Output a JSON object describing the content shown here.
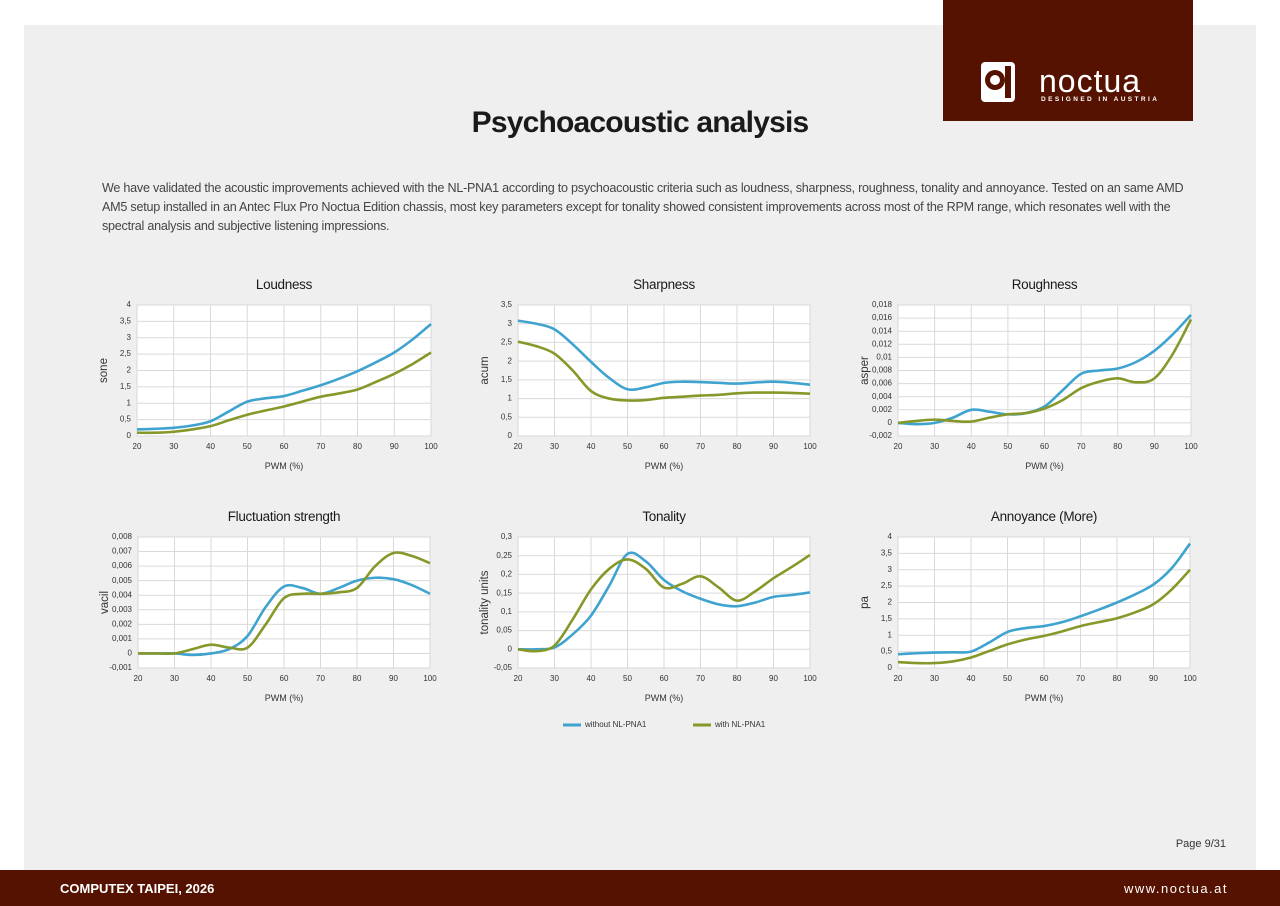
{
  "logo": {
    "name": "noctua",
    "tagline": "DESIGNED IN AUSTRIA"
  },
  "title": "Psychoacoustic analysis",
  "intro": "We have validated the acoustic improvements achieved with the NL-PNA1 according to psychoacoustic criteria such as loudness, sharpness, roughness, tonality and annoyance. Tested on an same AMD AM5 setup installed in an Antec Flux Pro Noctua Edition chassis, most key parameters except for tonality showed consistent improvements across most of the RPM range, which resonates well with the spectral analysis and subjective listening impressions.",
  "legend": [
    {
      "name": "without NL-PNA1",
      "color": "#3fa3cf"
    },
    {
      "name": "with NL-PNA1",
      "color": "#86982a"
    }
  ],
  "chart_data": [
    {
      "type": "line",
      "title": "Loudness",
      "xlabel": "PWM (%)",
      "ylabel": "sone",
      "grid": true,
      "x": [
        20,
        25,
        30,
        35,
        40,
        45,
        50,
        55,
        60,
        65,
        70,
        75,
        80,
        85,
        90,
        95,
        100
      ],
      "xlim": [
        20,
        100
      ],
      "xticks": [
        20,
        30,
        40,
        50,
        60,
        70,
        80,
        90,
        100
      ],
      "ylim": [
        0,
        4
      ],
      "yticks": [
        0,
        {
          "value": 0.5,
          "label": "0,5"
        },
        1,
        {
          "value": 1.5,
          "label": "1,5"
        },
        2,
        {
          "value": 2.5,
          "label": "2,5"
        },
        3,
        {
          "value": 3.5,
          "label": "3,5"
        },
        4
      ],
      "series": [
        {
          "values": [
            0.2,
            0.22,
            0.25,
            0.32,
            0.45,
            0.75,
            1.05,
            1.15,
            1.22,
            1.38,
            1.55,
            1.75,
            1.98,
            2.25,
            2.55,
            2.95,
            3.42
          ]
        },
        {
          "values": [
            0.1,
            0.1,
            0.13,
            0.2,
            0.3,
            0.48,
            0.65,
            0.78,
            0.9,
            1.05,
            1.2,
            1.3,
            1.42,
            1.65,
            1.9,
            2.2,
            2.55
          ]
        }
      ]
    },
    {
      "type": "line",
      "title": "Sharpness",
      "xlabel": "PWM (%)",
      "ylabel": "acum",
      "grid": true,
      "x": [
        20,
        25,
        30,
        35,
        40,
        45,
        50,
        55,
        60,
        65,
        70,
        75,
        80,
        85,
        90,
        95,
        100
      ],
      "xlim": [
        20,
        100
      ],
      "xticks": [
        20,
        30,
        40,
        50,
        60,
        70,
        80,
        90,
        100
      ],
      "ylim": [
        0,
        3.5
      ],
      "yticks": [
        0,
        {
          "value": 0.5,
          "label": "0,5"
        },
        1,
        {
          "value": 1.5,
          "label": "1,5"
        },
        2,
        {
          "value": 2.5,
          "label": "2,5"
        },
        3,
        {
          "value": 3.5,
          "label": "3,5"
        }
      ],
      "series": [
        {
          "values": [
            3.08,
            3.0,
            2.85,
            2.45,
            1.98,
            1.55,
            1.25,
            1.3,
            1.42,
            1.45,
            1.44,
            1.42,
            1.4,
            1.43,
            1.45,
            1.42,
            1.37
          ]
        },
        {
          "values": [
            2.52,
            2.4,
            2.2,
            1.75,
            1.2,
            1.0,
            0.95,
            0.96,
            1.02,
            1.05,
            1.08,
            1.1,
            1.14,
            1.16,
            1.16,
            1.15,
            1.13
          ]
        }
      ]
    },
    {
      "type": "line",
      "title": "Roughness",
      "xlabel": "PWM (%)",
      "ylabel": "asper",
      "grid": true,
      "x": [
        20,
        25,
        30,
        35,
        40,
        45,
        50,
        55,
        60,
        65,
        70,
        75,
        80,
        85,
        90,
        95,
        100
      ],
      "xlim": [
        20,
        100
      ],
      "xticks": [
        20,
        30,
        40,
        50,
        60,
        70,
        80,
        90,
        100
      ],
      "ylim": [
        -0.002,
        0.018
      ],
      "yticks": [
        {
          "value": -0.002,
          "label": "-0,002"
        },
        0,
        {
          "value": 0.002,
          "label": "0,002"
        },
        {
          "value": 0.004,
          "label": "0,004"
        },
        {
          "value": 0.006,
          "label": "0,006"
        },
        {
          "value": 0.008,
          "label": "0,008"
        },
        {
          "value": 0.01,
          "label": "0,01"
        },
        {
          "value": 0.012,
          "label": "0,012"
        },
        {
          "value": 0.014,
          "label": "0,014"
        },
        {
          "value": 0.016,
          "label": "0,016"
        },
        {
          "value": 0.018,
          "label": "0,018"
        }
      ],
      "series": [
        {
          "values": [
            0,
            -0.0002,
            0,
            0.0008,
            0.002,
            0.0017,
            0.0013,
            0.0015,
            0.0025,
            0.005,
            0.0075,
            0.008,
            0.0083,
            0.0093,
            0.011,
            0.0135,
            0.0165
          ]
        },
        {
          "values": [
            0,
            0.0003,
            0.0005,
            0.0003,
            0.0002,
            0.0008,
            0.0013,
            0.0015,
            0.0022,
            0.0035,
            0.0053,
            0.0063,
            0.0068,
            0.0062,
            0.0068,
            0.0105,
            0.0158
          ]
        }
      ]
    },
    {
      "type": "line",
      "title": "Fluctuation strength",
      "xlabel": "PWM (%)",
      "ylabel": "vacil",
      "grid": true,
      "x": [
        20,
        25,
        30,
        35,
        40,
        45,
        50,
        55,
        60,
        65,
        70,
        75,
        80,
        85,
        90,
        95,
        100
      ],
      "xlim": [
        20,
        100
      ],
      "xticks": [
        20,
        30,
        40,
        50,
        60,
        70,
        80,
        90,
        100
      ],
      "ylim": [
        -0.001,
        0.008
      ],
      "yticks": [
        {
          "value": -0.001,
          "label": "-0,001"
        },
        0,
        {
          "value": 0.001,
          "label": "0,001"
        },
        {
          "value": 0.002,
          "label": "0,002"
        },
        {
          "value": 0.003,
          "label": "0,003"
        },
        {
          "value": 0.004,
          "label": "0,004"
        },
        {
          "value": 0.005,
          "label": "0,005"
        },
        {
          "value": 0.006,
          "label": "0,006"
        },
        {
          "value": 0.007,
          "label": "0,007"
        },
        {
          "value": 0.008,
          "label": "0,008"
        }
      ],
      "series": [
        {
          "values": [
            0,
            0,
            0,
            -0.0001,
            0,
            0.0003,
            0.0012,
            0.0032,
            0.0046,
            0.0045,
            0.0041,
            0.0045,
            0.005,
            0.0052,
            0.0051,
            0.0047,
            0.0041
          ]
        },
        {
          "values": [
            0,
            0,
            0,
            0.0003,
            0.0006,
            0.0004,
            0.0004,
            0.002,
            0.0038,
            0.0041,
            0.0041,
            0.0042,
            0.0045,
            0.006,
            0.0069,
            0.0067,
            0.0062
          ]
        }
      ]
    },
    {
      "type": "line",
      "title": "Tonality",
      "xlabel": "PWM (%)",
      "ylabel": "tonality units",
      "grid": true,
      "x": [
        20,
        25,
        30,
        35,
        40,
        45,
        50,
        55,
        60,
        65,
        70,
        75,
        80,
        85,
        90,
        95,
        100
      ],
      "xlim": [
        20,
        100
      ],
      "xticks": [
        20,
        30,
        40,
        50,
        60,
        70,
        80,
        90,
        100
      ],
      "ylim": [
        -0.05,
        0.3
      ],
      "yticks": [
        {
          "value": -0.05,
          "label": "-0,05"
        },
        0,
        {
          "value": 0.05,
          "label": "0,05"
        },
        {
          "value": 0.1,
          "label": "0,1"
        },
        {
          "value": 0.15,
          "label": "0,15"
        },
        {
          "value": 0.2,
          "label": "0,2"
        },
        {
          "value": 0.25,
          "label": "0,25"
        },
        {
          "value": 0.3,
          "label": "0,3"
        }
      ],
      "series": [
        {
          "values": [
            0,
            0,
            0.005,
            0.04,
            0.09,
            0.17,
            0.255,
            0.235,
            0.185,
            0.155,
            0.135,
            0.12,
            0.115,
            0.125,
            0.14,
            0.145,
            0.152
          ]
        },
        {
          "values": [
            0,
            -0.005,
            0.01,
            0.08,
            0.16,
            0.215,
            0.24,
            0.215,
            0.165,
            0.175,
            0.195,
            0.165,
            0.13,
            0.155,
            0.19,
            0.22,
            0.252
          ]
        }
      ]
    },
    {
      "type": "line",
      "title": "Annoyance (More)",
      "xlabel": "PWM (%)",
      "ylabel": "pa",
      "grid": true,
      "x": [
        20,
        25,
        30,
        35,
        40,
        45,
        50,
        55,
        60,
        65,
        70,
        75,
        80,
        85,
        90,
        95,
        100
      ],
      "xlim": [
        20,
        100
      ],
      "xticks": [
        20,
        30,
        40,
        50,
        60,
        70,
        80,
        90,
        100
      ],
      "ylim": [
        0,
        4
      ],
      "yticks": [
        0,
        {
          "value": 0.5,
          "label": "0,5"
        },
        1,
        {
          "value": 1.5,
          "label": "1,5"
        },
        2,
        {
          "value": 2.5,
          "label": "2,5"
        },
        3,
        {
          "value": 3.5,
          "label": "3,5"
        },
        4
      ],
      "series": [
        {
          "values": [
            0.42,
            0.45,
            0.47,
            0.48,
            0.5,
            0.78,
            1.1,
            1.22,
            1.28,
            1.4,
            1.58,
            1.78,
            2.0,
            2.25,
            2.55,
            3.05,
            3.8
          ]
        },
        {
          "values": [
            0.18,
            0.15,
            0.15,
            0.2,
            0.32,
            0.52,
            0.72,
            0.87,
            0.98,
            1.12,
            1.28,
            1.4,
            1.52,
            1.7,
            1.95,
            2.4,
            3.0
          ]
        }
      ]
    }
  ],
  "page_number": "Page 9/31",
  "footer": {
    "event": "COMPUTEX TAIPEI, 2026",
    "url": "www.noctua.at"
  }
}
